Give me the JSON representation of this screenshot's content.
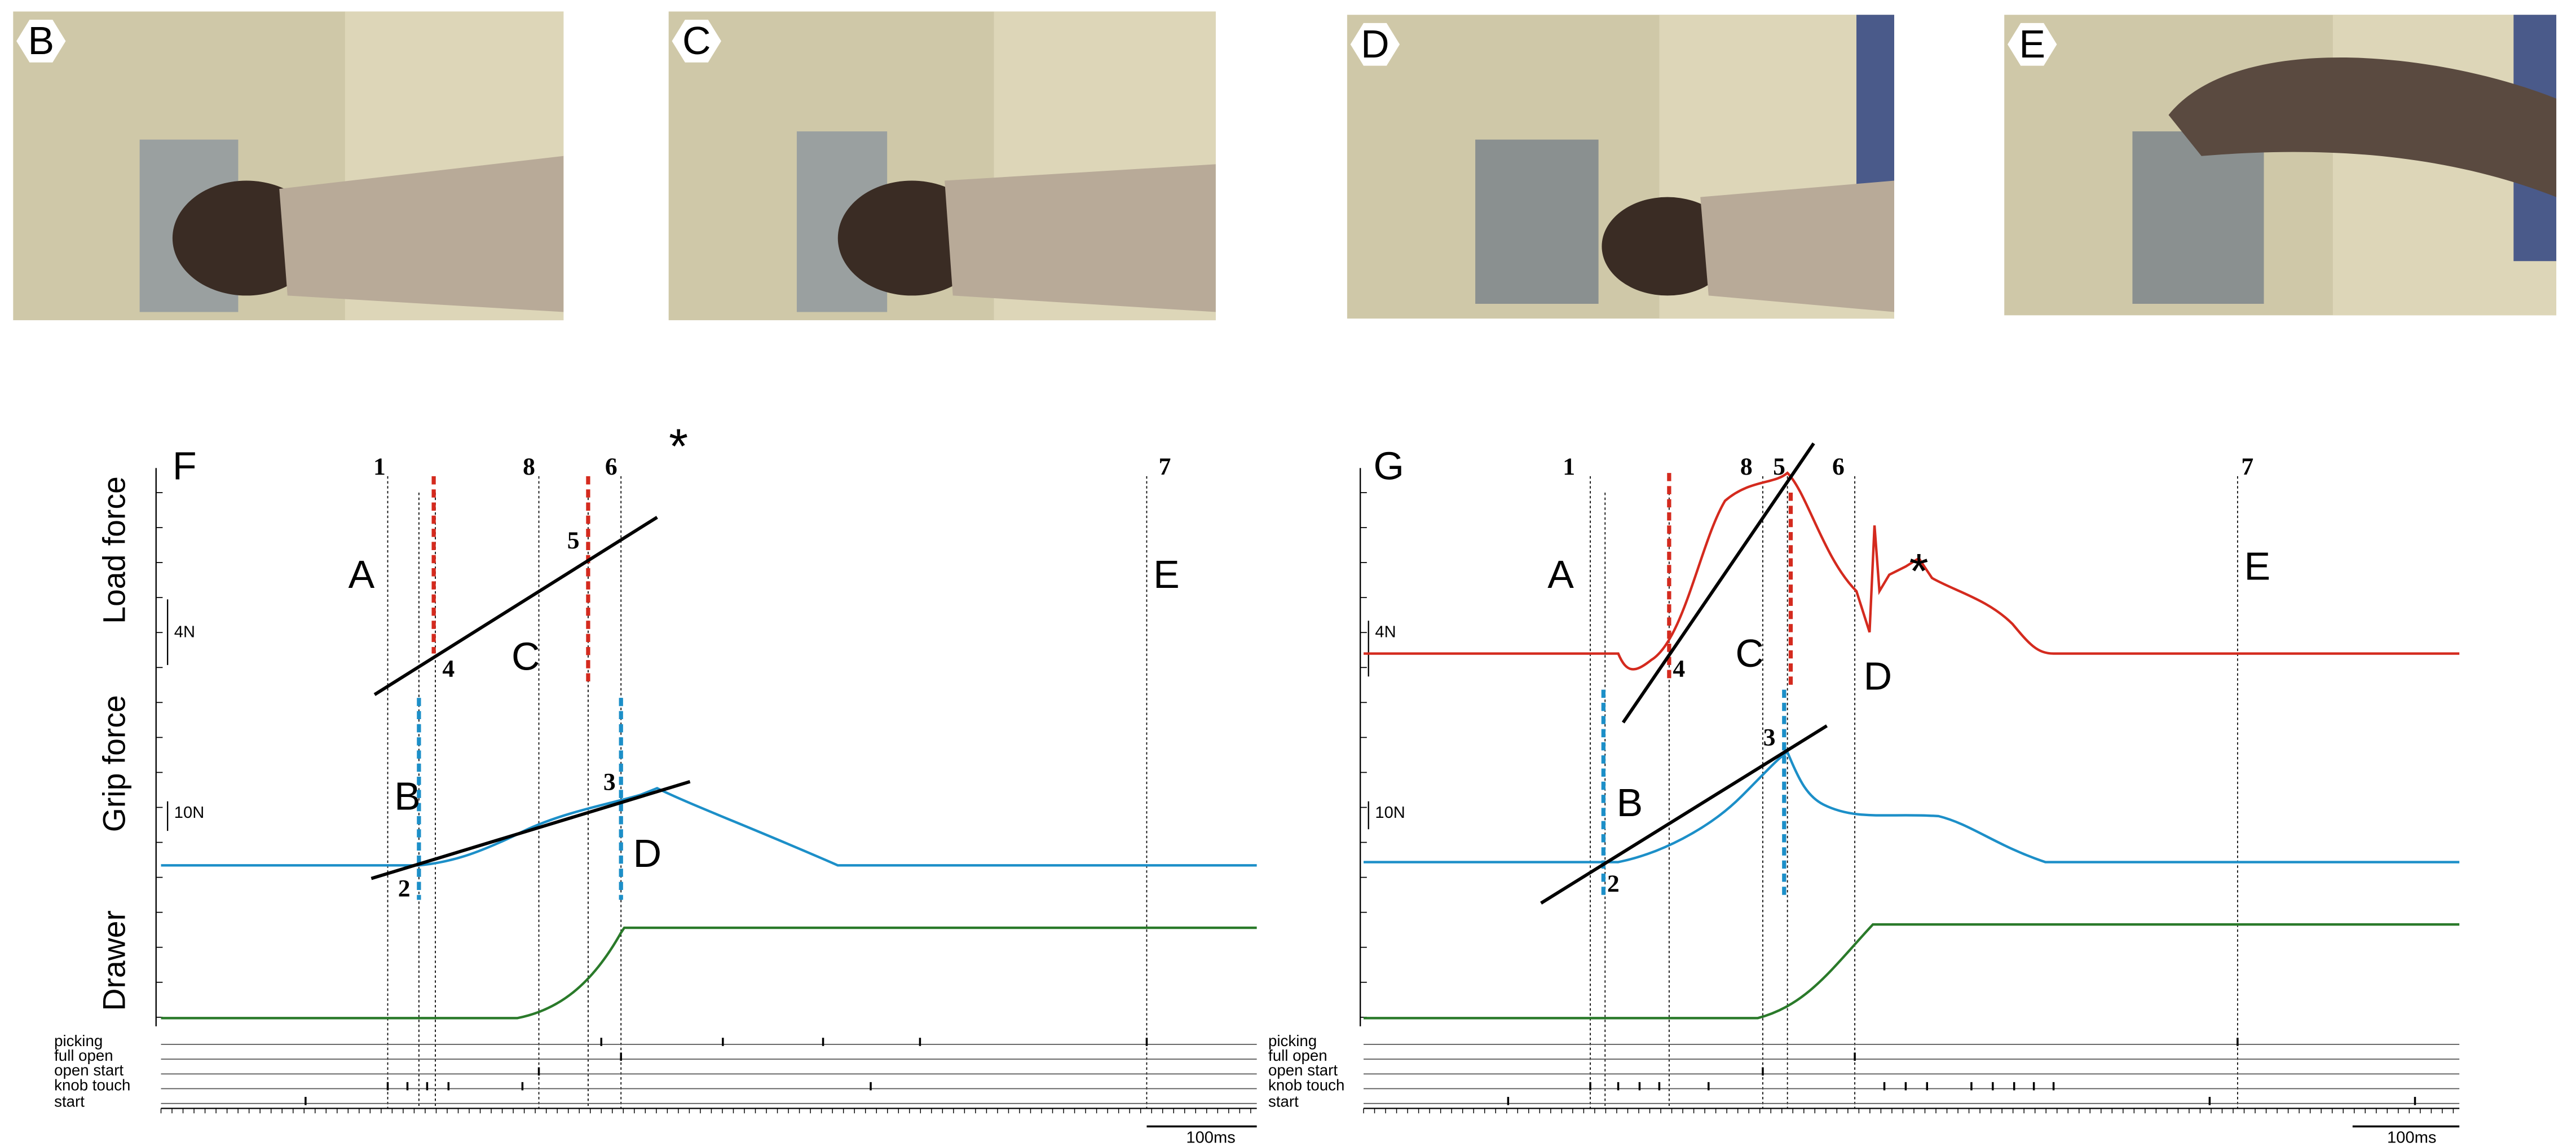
{
  "photos": [
    {
      "label": "B"
    },
    {
      "label": "C"
    },
    {
      "label": "D"
    },
    {
      "label": "E"
    }
  ],
  "panels": [
    {
      "label": "F",
      "y_labels": [
        "Load force",
        "Grip force",
        "Drawer"
      ],
      "scale_bars": [
        "4N",
        "10N",
        "100ms"
      ],
      "event_numbers": [
        "1",
        "8",
        "6",
        "7"
      ],
      "asterisk": "*",
      "markers": [
        "4",
        "5",
        "2",
        "3"
      ],
      "phase_letters": [
        "A",
        "B",
        "C",
        "D",
        "E"
      ],
      "event_rows": [
        "picking",
        "full open",
        "open start",
        "knob touch",
        "start"
      ]
    },
    {
      "label": "G",
      "y_labels": [
        "Load force",
        "Grip force",
        "Drawer"
      ],
      "scale_bars": [
        "4N",
        "10N",
        "100ms"
      ],
      "event_numbers": [
        "1",
        "8",
        "5",
        "6",
        "7"
      ],
      "asterisk": "*",
      "markers": [
        "4",
        "2",
        "3"
      ],
      "phase_letters": [
        "A",
        "B",
        "C",
        "D",
        "E"
      ],
      "event_rows": [
        "picking",
        "full open",
        "open start",
        "knob touch",
        "start"
      ]
    }
  ]
}
